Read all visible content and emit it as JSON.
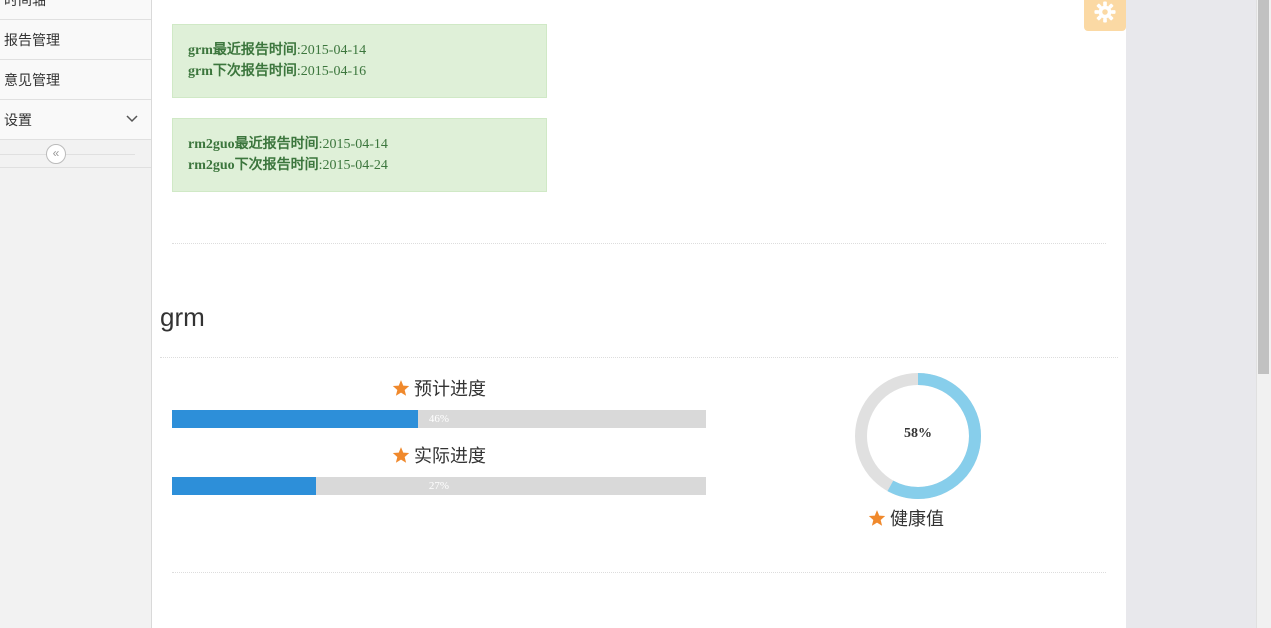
{
  "sidebar": {
    "items": [
      {
        "label": "时间轴"
      },
      {
        "label": "报告管理"
      },
      {
        "label": "意见管理"
      },
      {
        "label": "设置"
      }
    ],
    "collapse_icon": "double-chevron-left-icon"
  },
  "reports": [
    {
      "latest_label": "grm最近报告时间",
      "latest_value": ":2015-04-14",
      "next_label": "grm下次报告时间",
      "next_value": ":2015-04-16"
    },
    {
      "latest_label": "rm2guo最近报告时间",
      "latest_value": ":2015-04-14",
      "next_label": "rm2guo下次报告时间",
      "next_value": ":2015-04-24"
    }
  ],
  "project": {
    "name": "grm",
    "planned": {
      "label": "预计进度",
      "percent": 46,
      "percent_text": "46%"
    },
    "actual": {
      "label": "实际进度",
      "percent": 27,
      "percent_text": "27%"
    },
    "health": {
      "label": "健康值",
      "percent": 58,
      "percent_text": "58%"
    }
  },
  "colors": {
    "progress_fill": "#2d8fd9",
    "progress_track": "#d9d9d9",
    "donut_fill": "#87ceeb",
    "donut_track": "#e0e0e0",
    "star": "#f0892c",
    "alert_bg": "#dff0d8",
    "alert_text": "#3c763d",
    "gear_tab": "#fbd9a4"
  }
}
